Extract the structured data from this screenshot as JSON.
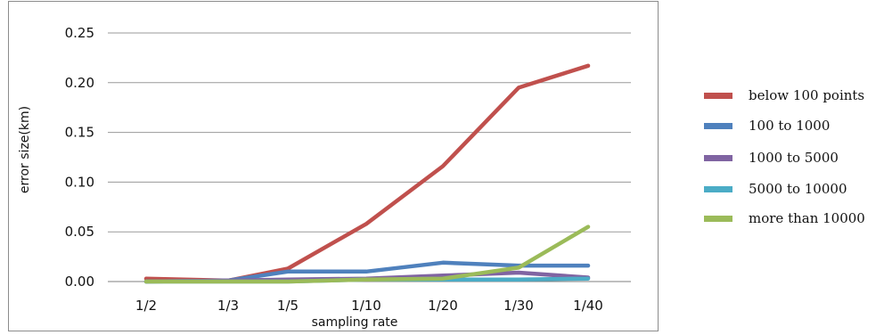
{
  "chart_data": {
    "type": "line",
    "title": "",
    "xlabel": "sampling rate",
    "ylabel": "error size(km)",
    "categories": [
      "1/2",
      "1/3",
      "1/5",
      "1/10",
      "1/20",
      "1/30",
      "1/40"
    ],
    "ylim": [
      0,
      0.25
    ],
    "yticks": [
      "0.00",
      "0.05",
      "0.10",
      "0.15",
      "0.20",
      "0.25"
    ],
    "grid": true,
    "legend_position": "right",
    "series": [
      {
        "name": "below 100 points",
        "color": "#c0504d",
        "values": [
          0.003,
          0.001,
          0.013,
          0.058,
          0.116,
          0.195,
          0.217
        ]
      },
      {
        "name": "100 to 1000",
        "color": "#4f81bd",
        "values": [
          0.0,
          0.001,
          0.01,
          0.01,
          0.019,
          0.016,
          0.016
        ]
      },
      {
        "name": "1000 to 5000",
        "color": "#8064a2",
        "values": [
          0.0,
          0.001,
          0.002,
          0.003,
          0.006,
          0.009,
          0.004
        ]
      },
      {
        "name": "5000 to 10000",
        "color": "#4bacc6",
        "values": [
          0.0,
          0.0,
          0.0,
          0.002,
          0.002,
          0.002,
          0.003
        ]
      },
      {
        "name": "more than 10000",
        "color": "#9bbb59",
        "values": [
          0.0,
          0.0,
          0.0,
          0.002,
          0.003,
          0.014,
          0.055
        ]
      }
    ]
  }
}
